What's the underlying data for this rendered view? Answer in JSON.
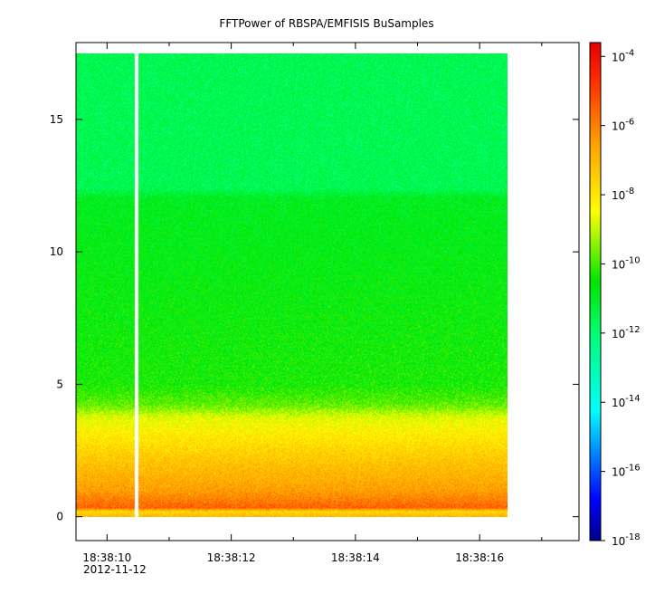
{
  "chart_data": {
    "type": "heatmap",
    "title": "FFTPower of RBSPA/EMFISIS  BuSamples",
    "xlabel": "",
    "ylabel": "",
    "date_label": "2012-11-12",
    "x_ticks": [
      {
        "t": 10,
        "label": "18:38:10"
      },
      {
        "t": 12,
        "label": "18:38:12"
      },
      {
        "t": 14,
        "label": "18:38:14"
      },
      {
        "t": 16,
        "label": "18:38:16"
      }
    ],
    "x_minor_ticks": [
      11,
      13,
      15,
      17
    ],
    "xlim_seconds": [
      9.5,
      17.6
    ],
    "y_ticks": [
      0,
      5,
      10,
      15
    ],
    "ylim": [
      -0.9,
      17.9
    ],
    "data_extent": {
      "t_start": 9.5,
      "t_end": 16.45,
      "y_min": 0,
      "y_max": 17.5
    },
    "data_gap": {
      "t_start": 10.45,
      "t_end": 10.5
    },
    "colorbar": {
      "scale": "log",
      "min_exponent": -18,
      "max_exponent": -3.6,
      "tick_exponents": [
        -18,
        -16,
        -14,
        -12,
        -10,
        -8,
        -6,
        -4
      ],
      "tick_labels": [
        "10-18",
        "10-16",
        "10-14",
        "10-12",
        "10-10",
        "10-8",
        "10-6",
        "10-4"
      ]
    },
    "power_profile": [
      {
        "y": 0.0,
        "log10_power": -7.0
      },
      {
        "y": 0.2,
        "log10_power": -7.7
      },
      {
        "y": 0.35,
        "log10_power": -5.5
      },
      {
        "y": 1.0,
        "log10_power": -6.5
      },
      {
        "y": 2.0,
        "log10_power": -7.2
      },
      {
        "y": 3.0,
        "log10_power": -8.0
      },
      {
        "y": 3.7,
        "log10_power": -8.6
      },
      {
        "y": 4.2,
        "log10_power": -9.7
      },
      {
        "y": 5.0,
        "log10_power": -10.4
      },
      {
        "y": 8.0,
        "log10_power": -10.6
      },
      {
        "y": 12.0,
        "log10_power": -10.9
      },
      {
        "y": 12.4,
        "log10_power": -11.6
      },
      {
        "y": 15.0,
        "log10_power": -11.6
      },
      {
        "y": 17.5,
        "log10_power": -11.6
      }
    ]
  }
}
